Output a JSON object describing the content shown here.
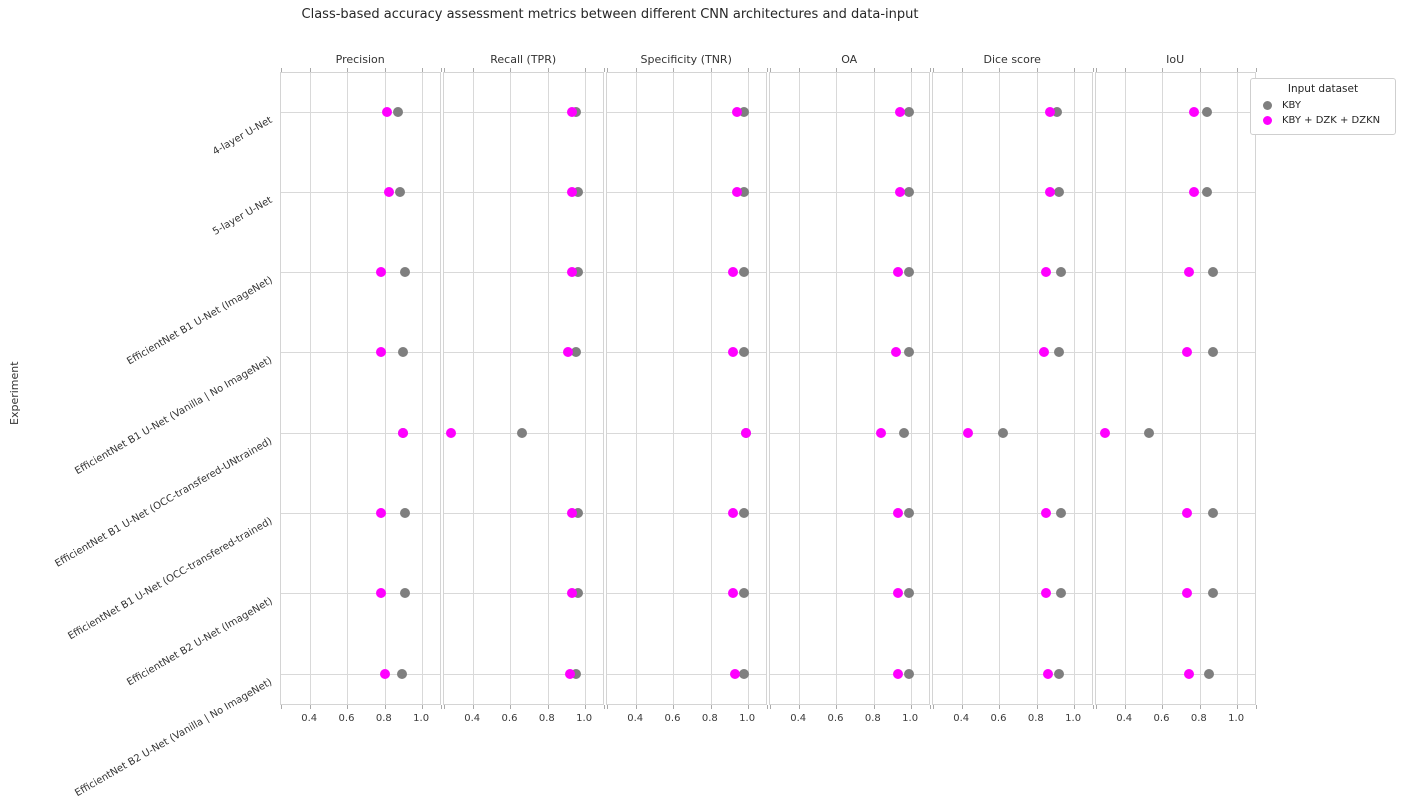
{
  "title": "Class-based accuracy assessment metrics between different CNN architectures and data-input",
  "legend": {
    "title": "Input dataset",
    "entries": [
      {
        "label": "KBY",
        "color": "#7f7f7f"
      },
      {
        "label": "KBY + DZK + DZKN",
        "color": "#ff00ff"
      }
    ]
  },
  "chart_data": {
    "type": "scatter",
    "title": "Class-based accuracy assessment metrics between different CNN architectures and data-input",
    "ylabel": "Experiment",
    "facet_titles": [
      "Precision",
      "Recall (TPR)",
      "Specificity (TNR)",
      "OA",
      "Dice score",
      "IoU"
    ],
    "categories": [
      "4-layer U-Net",
      "5-layer U-Net",
      "EfficientNet B1 U-Net (ImageNet)",
      "EfficientNet B1 U-Net (Vanilla | No ImageNet)",
      "EfficientNet B1 U-Net (OCC-transfered-UNtrained)",
      "EfficientNet B1 U-Net (OCC-transfered-trained)",
      "EfficientNet B2 U-Net (ImageNet)",
      "EfficientNet B2 U-Net (Vanilla | No ImageNet)"
    ],
    "xlim": [
      0.242,
      1.105
    ],
    "x_ticks": [
      0.4,
      0.6,
      0.8,
      1.0
    ],
    "x_tick_labels": [
      "0.4",
      "0.6",
      "0.8",
      "1.0"
    ],
    "grid": true,
    "legend_position": "outside upper right",
    "series": [
      {
        "name": "KBY",
        "color": "#7f7f7f",
        "values": {
          "Precision": [
            0.87,
            0.88,
            0.91,
            0.9,
            0.9,
            0.91,
            0.91,
            0.89
          ],
          "Recall (TPR)": [
            0.95,
            0.96,
            0.96,
            0.95,
            0.66,
            0.96,
            0.96,
            0.95
          ],
          "Specificity (TNR)": [
            0.98,
            0.98,
            0.98,
            0.98,
            0.99,
            0.98,
            0.98,
            0.98
          ],
          "OA": [
            0.99,
            0.99,
            0.99,
            0.99,
            0.96,
            0.99,
            0.99,
            0.99
          ],
          "Dice score": [
            0.91,
            0.92,
            0.93,
            0.92,
            0.62,
            0.93,
            0.93,
            0.92
          ],
          "IoU": [
            0.84,
            0.84,
            0.87,
            0.87,
            0.53,
            0.87,
            0.87,
            0.85
          ]
        }
      },
      {
        "name": "KBY + DZK + DZKN",
        "color": "#ff00ff",
        "values": {
          "Precision": [
            0.81,
            0.82,
            0.78,
            0.78,
            0.9,
            0.78,
            0.78,
            0.8
          ],
          "Recall (TPR)": [
            0.93,
            0.93,
            0.93,
            0.91,
            0.28,
            0.93,
            0.93,
            0.92
          ],
          "Specificity (TNR)": [
            0.94,
            0.94,
            0.92,
            0.92,
            0.99,
            0.92,
            0.92,
            0.93
          ],
          "OA": [
            0.94,
            0.94,
            0.93,
            0.92,
            0.84,
            0.93,
            0.93,
            0.93
          ],
          "Dice score": [
            0.87,
            0.87,
            0.85,
            0.84,
            0.43,
            0.85,
            0.85,
            0.86
          ],
          "IoU": [
            0.77,
            0.77,
            0.74,
            0.73,
            0.29,
            0.73,
            0.73,
            0.74
          ]
        }
      }
    ]
  }
}
